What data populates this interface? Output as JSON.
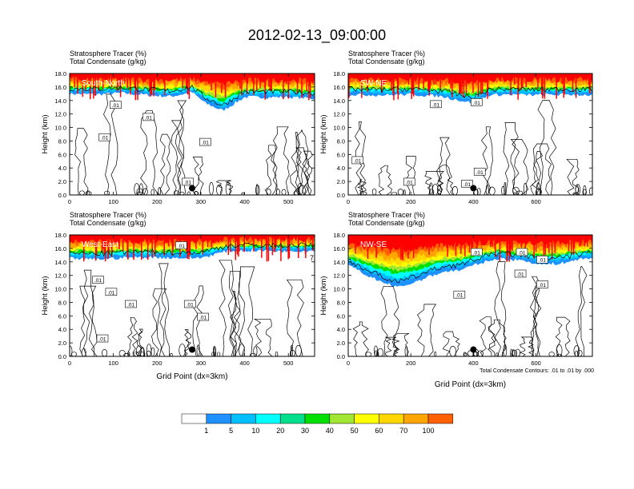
{
  "title": "2012-02-13_09:00:00",
  "colors": {
    "levels": [
      "#ffffff",
      "#1e90ff",
      "#00bfff",
      "#00ffff",
      "#00e08c",
      "#00e000",
      "#a0e632",
      "#ffff00",
      "#ffd700",
      "#ffa500",
      "#ff6000",
      "#ff0000"
    ],
    "contour": "#000000"
  },
  "chart_data": [
    {
      "type": "heatmap",
      "panel_label": "South-North",
      "title_lines": [
        "Stratosphere Tracer   (%)",
        "Total Condensate   (g/kg)"
      ],
      "ylabel": "Height (km)",
      "xlabel": "",
      "xlim": [
        0,
        560
      ],
      "ylim": [
        0,
        18
      ],
      "xticks": [
        "0",
        "100",
        "200",
        "300",
        "400",
        "500"
      ],
      "xtick_values": [
        0,
        100,
        200,
        300,
        400,
        500
      ],
      "yticks": [
        "0.0",
        "2.0",
        "4.0",
        "6.0",
        "8.0",
        "10.0",
        "12.0",
        "14.0",
        "16.0",
        "18.0"
      ],
      "ytick_values": [
        0,
        2,
        4,
        6,
        8,
        10,
        12,
        14,
        16,
        18
      ],
      "tracer_profile": {
        "x": [
          0,
          60,
          120,
          180,
          230,
          280,
          310,
          350,
          400,
          450,
          500,
          560
        ],
        "base_km": [
          15.0,
          14.9,
          15.1,
          14.8,
          14.6,
          15.2,
          13.6,
          12.5,
          14.5,
          14.5,
          14.5,
          14.3
        ]
      },
      "contour_labels": [
        {
          "text": ".01",
          "x": 105,
          "y": 13.3
        },
        {
          "text": ".01",
          "x": 180,
          "y": 11.5
        },
        {
          "text": ".01",
          "x": 80,
          "y": 8.5
        },
        {
          "text": ".01",
          "x": 310,
          "y": 7.8
        },
        {
          "text": ".01",
          "x": 270,
          "y": 1.9
        }
      ],
      "marker": {
        "x": 280,
        "y": 1.0
      }
    },
    {
      "type": "heatmap",
      "panel_label": "SW-NE",
      "title_lines": [
        "Stratosphere Tracer   (%)",
        "Total Condensate   (g/kg)"
      ],
      "ylabel": "Height (km)",
      "xlabel": "",
      "xlim": [
        0,
        780
      ],
      "ylim": [
        0,
        18
      ],
      "xticks": [
        "0",
        "200",
        "400",
        "600"
      ],
      "xtick_values": [
        0,
        200,
        400,
        600
      ],
      "yticks": [
        "0.0",
        "2.0",
        "4.0",
        "6.0",
        "8.0",
        "10.0",
        "12.0",
        "14.0",
        "16.0",
        "18.0"
      ],
      "ytick_values": [
        0,
        2,
        4,
        6,
        8,
        10,
        12,
        14,
        16,
        18
      ],
      "tracer_profile": {
        "x": [
          0,
          100,
          200,
          300,
          400,
          450,
          500,
          600,
          700,
          780
        ],
        "base_km": [
          14.9,
          14.8,
          14.9,
          14.6,
          13.6,
          14.8,
          14.9,
          14.8,
          14.9,
          14.8
        ]
      },
      "contour_labels": [
        {
          "text": ".01",
          "x": 280,
          "y": 13.4
        },
        {
          "text": ".01",
          "x": 410,
          "y": 13.7
        },
        {
          "text": ".01",
          "x": 30,
          "y": 5.1
        },
        {
          "text": ".01",
          "x": 420,
          "y": 3.4
        },
        {
          "text": ".01",
          "x": 195,
          "y": 1.9
        },
        {
          "text": ".01",
          "x": 380,
          "y": 1.6
        }
      ],
      "marker": {
        "x": 400,
        "y": 1.0
      }
    },
    {
      "type": "heatmap",
      "panel_label": "West-East",
      "title_lines": [
        "Stratosphere Tracer   (%)",
        "Total Condensate   (g/kg)"
      ],
      "ylabel": "Height (km)",
      "xlabel": "Grid Point (dx=3km)",
      "xlim": [
        0,
        560
      ],
      "ylim": [
        0,
        18
      ],
      "xticks": [
        "0",
        "100",
        "200",
        "300",
        "400",
        "500"
      ],
      "xtick_values": [
        0,
        100,
        200,
        300,
        400,
        500
      ],
      "yticks": [
        "0.0",
        "2.0",
        "4.0",
        "6.0",
        "8.0",
        "10.0",
        "12.0",
        "14.0",
        "16.0",
        "18.0"
      ],
      "ytick_values": [
        0,
        2,
        4,
        6,
        8,
        10,
        12,
        14,
        16,
        18
      ],
      "tracer_profile": {
        "x": [
          0,
          60,
          120,
          180,
          240,
          300,
          360,
          420,
          480,
          560
        ],
        "base_km": [
          14.5,
          14.4,
          14.6,
          14.7,
          14.6,
          14.6,
          15.6,
          15.7,
          15.6,
          15.7
        ]
      },
      "contour_labels": [
        {
          "text": ".01",
          "x": 255,
          "y": 16.4
        },
        {
          "text": ".01",
          "x": 65,
          "y": 11.3
        },
        {
          "text": ".01",
          "x": 95,
          "y": 9.5
        },
        {
          "text": ".01",
          "x": 140,
          "y": 7.7
        },
        {
          "text": ".01",
          "x": 275,
          "y": 7.7
        },
        {
          "text": ".01",
          "x": 305,
          "y": 5.8
        },
        {
          "text": ".01",
          "x": 75,
          "y": 2.6
        }
      ],
      "marker": {
        "x": 280,
        "y": 1.0
      },
      "edge_label": "7"
    },
    {
      "type": "heatmap",
      "panel_label": "NW-SE",
      "title_lines": [
        "Stratosphere Tracer   (%)",
        "Total Condensate   (g/kg)"
      ],
      "ylabel": "Height (km)",
      "xlabel": "Grid Point (dx=3km)",
      "xlim": [
        0,
        780
      ],
      "ylim": [
        0,
        18
      ],
      "xticks": [
        "0",
        "200",
        "400",
        "600"
      ],
      "xtick_values": [
        0,
        200,
        400,
        600
      ],
      "yticks": [
        "0.0",
        "2.0",
        "4.0",
        "6.0",
        "8.0",
        "10.0",
        "12.0",
        "14.0",
        "16.0",
        "18.0"
      ],
      "ytick_values": [
        0,
        2,
        4,
        6,
        8,
        10,
        12,
        14,
        16,
        18
      ],
      "tracer_profile": {
        "x": [
          0,
          60,
          120,
          160,
          200,
          240,
          300,
          360,
          420,
          480,
          560,
          620,
          680,
          740,
          780
        ],
        "base_km": [
          13.5,
          12.0,
          10.8,
          10.2,
          10.8,
          11.5,
          12.5,
          12.8,
          13.8,
          14.5,
          14.2,
          13.6,
          13.8,
          14.4,
          14.6
        ]
      },
      "contour_labels": [
        {
          "text": ".01",
          "x": 410,
          "y": 15.4
        },
        {
          "text": ".01",
          "x": 555,
          "y": 15.4
        },
        {
          "text": ".01",
          "x": 620,
          "y": 14.3
        },
        {
          "text": ".01",
          "x": 550,
          "y": 12.2
        },
        {
          "text": ".01",
          "x": 620,
          "y": 10.6
        },
        {
          "text": ".01",
          "x": 355,
          "y": 9.1
        }
      ],
      "marker": {
        "x": 400,
        "y": 1.0
      },
      "note": "Total Condensate Contours: .01 to .01 by .000"
    }
  ],
  "colorbar": {
    "labels": [
      "1",
      "5",
      "10",
      "20",
      "30",
      "40",
      "50",
      "60",
      "70",
      "100"
    ]
  }
}
